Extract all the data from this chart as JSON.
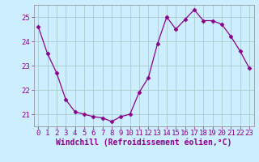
{
  "hours": [
    0,
    1,
    2,
    3,
    4,
    5,
    6,
    7,
    8,
    9,
    10,
    11,
    12,
    13,
    14,
    15,
    16,
    17,
    18,
    19,
    20,
    21,
    22,
    23
  ],
  "values": [
    24.6,
    23.5,
    22.7,
    21.6,
    21.1,
    21.0,
    20.9,
    20.85,
    20.7,
    20.9,
    21.0,
    21.9,
    22.5,
    23.9,
    25.0,
    24.5,
    24.9,
    25.3,
    24.85,
    24.85,
    24.7,
    24.2,
    23.6,
    22.9
  ],
  "line_color": "#8b008b",
  "marker": "D",
  "marker_size": 2.5,
  "background_color": "#cceeff",
  "grid_color": "#aacccc",
  "xlabel": "Windchill (Refroidissement éolien,°C)",
  "xlabel_fontsize": 7,
  "tick_fontsize": 6.5,
  "ylim": [
    20.5,
    25.5
  ],
  "yticks": [
    21,
    22,
    23,
    24,
    25
  ],
  "xlim": [
    -0.5,
    23.5
  ],
  "xticks": [
    0,
    1,
    2,
    3,
    4,
    5,
    6,
    7,
    8,
    9,
    10,
    11,
    12,
    13,
    14,
    15,
    16,
    17,
    18,
    19,
    20,
    21,
    22,
    23
  ]
}
